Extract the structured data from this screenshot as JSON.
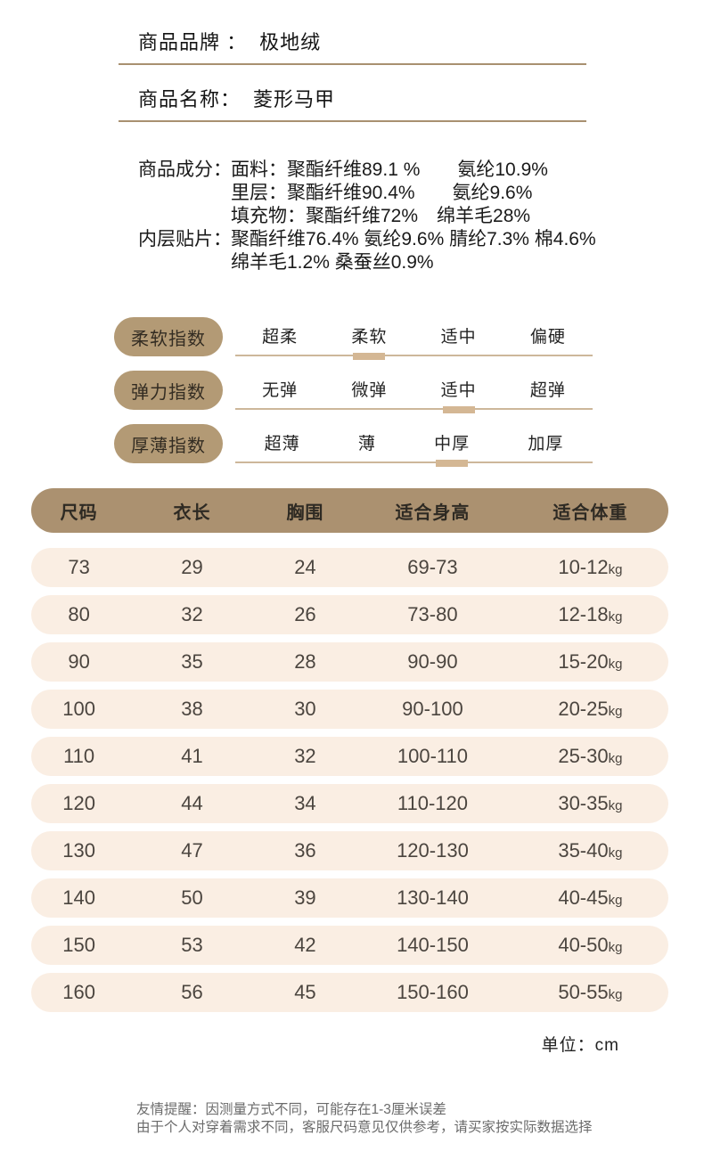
{
  "colors": {
    "badge_tan": "#b39a75",
    "table_header_tan": "#ab9170",
    "row_cream": "#faeee3",
    "divider": "#a89070",
    "selected_marker": "#d4b794"
  },
  "product_info": {
    "brand_label": "商品品牌 ：",
    "brand_value": "极地绒",
    "name_label": "商品名称：",
    "name_value": "菱形马甲"
  },
  "composition": {
    "groups": [
      {
        "label": "商品成分：",
        "lines": [
          "面料：聚酯纤维89.1 %　　氨纶10.9%",
          "里层：聚酯纤维90.4%　　氨纶9.6%",
          "填充物：聚酯纤维72%　绵羊毛28%"
        ]
      },
      {
        "label": "内层贴片：",
        "lines": [
          "聚酯纤维76.4% 氨纶9.6% 腈纶7.3% 棉4.6%",
          "绵羊毛1.2% 桑蚕丝0.9%"
        ]
      }
    ]
  },
  "indexes": [
    {
      "label": "柔软指数",
      "options": [
        "超柔",
        "柔软",
        "适中",
        "偏硬"
      ],
      "selected": 1
    },
    {
      "label": "弹力指数",
      "options": [
        "无弹",
        "微弹",
        "适中",
        "超弹"
      ],
      "selected": 2
    },
    {
      "label": "厚薄指数",
      "options": [
        "超薄",
        "薄",
        "中厚",
        "加厚"
      ],
      "selected": 2
    }
  ],
  "size_table": {
    "headers": [
      "尺码",
      "衣长",
      "胸围",
      "适合身高",
      "适合体重"
    ],
    "weight_unit": "kg",
    "rows": [
      [
        "73",
        "29",
        "24",
        "69-73",
        "10-12"
      ],
      [
        "80",
        "32",
        "26",
        "73-80",
        "12-18"
      ],
      [
        "90",
        "35",
        "28",
        "90-90",
        "15-20"
      ],
      [
        "100",
        "38",
        "30",
        "90-100",
        "20-25"
      ],
      [
        "110",
        "41",
        "32",
        "100-110",
        "25-30"
      ],
      [
        "120",
        "44",
        "34",
        "110-120",
        "30-35"
      ],
      [
        "130",
        "47",
        "36",
        "120-130",
        "35-40"
      ],
      [
        "140",
        "50",
        "39",
        "130-140",
        "40-45"
      ],
      [
        "150",
        "53",
        "42",
        "140-150",
        "40-50"
      ],
      [
        "160",
        "56",
        "45",
        "150-160",
        "50-55"
      ]
    ],
    "unit_note": "单位：cm"
  },
  "footer": {
    "lines": [
      "友情提醒：因测量方式不同，可能存在1-3厘米误差",
      "由于个人对穿着需求不同，客服尺码意见仅供参考，请买家按实际数据选择"
    ]
  }
}
